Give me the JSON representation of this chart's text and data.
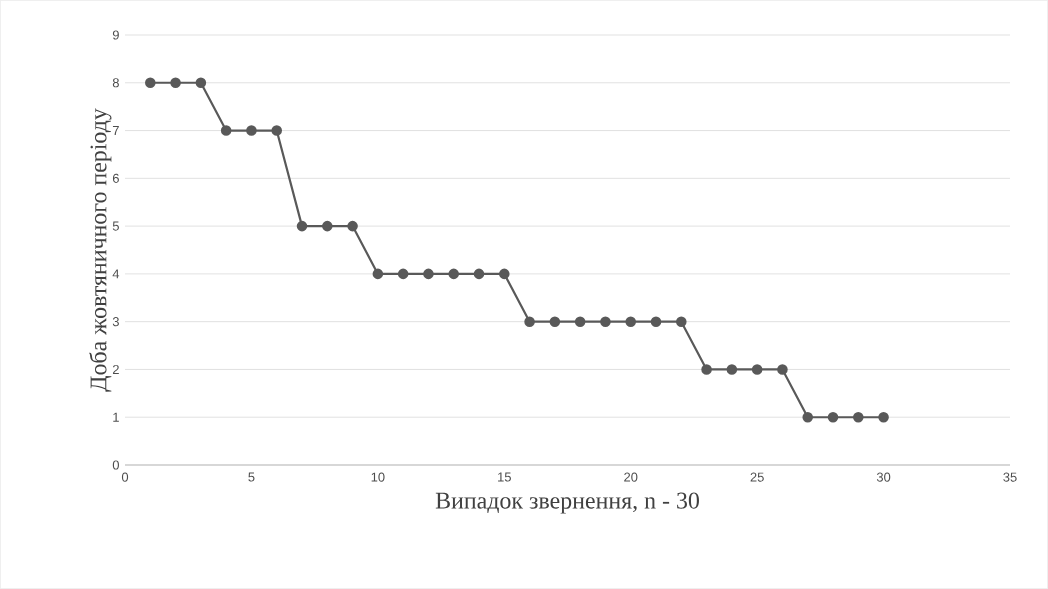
{
  "chart_data": {
    "type": "line",
    "xlabel": "Випадок звернення, n - 30",
    "ylabel": "Доба жовтяничного періоду",
    "x": [
      1,
      2,
      3,
      4,
      5,
      6,
      7,
      8,
      9,
      10,
      11,
      12,
      13,
      14,
      15,
      16,
      17,
      18,
      19,
      20,
      21,
      22,
      23,
      24,
      25,
      26,
      27,
      28,
      29,
      30
    ],
    "series": [
      {
        "color": "#595959",
        "values": [
          8,
          8,
          8,
          7,
          7,
          7,
          5,
          5,
          5,
          4,
          4,
          4,
          4,
          4,
          4,
          3,
          3,
          3,
          3,
          3,
          3,
          3,
          2,
          2,
          2,
          2,
          1,
          1,
          1,
          1
        ]
      }
    ],
    "xlim": [
      0,
      35
    ],
    "xticks": [
      0,
      5,
      10,
      15,
      20,
      25,
      30,
      35
    ],
    "ylim": [
      0,
      9
    ],
    "yticks": [
      0,
      1,
      2,
      3,
      4,
      5,
      6,
      7,
      8,
      9
    ],
    "grid": "y",
    "marker": "circle",
    "line_style": "solid"
  }
}
